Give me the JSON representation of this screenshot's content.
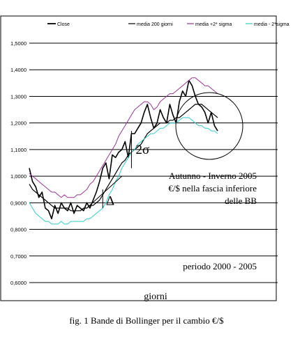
{
  "chart_data": {
    "type": "line",
    "xlabel": "giorni",
    "ylabel": "",
    "ylim": [
      0.6,
      1.5
    ],
    "y_ticks": [
      "0,6000",
      "0,7000",
      "0,8000",
      "0,9000",
      "1,0000",
      "1,1000",
      "1,2000",
      "1,3000",
      "1,4000",
      "1,5000"
    ],
    "grid": "horizontal",
    "legend_position": "top",
    "n_points": 60,
    "series": [
      {
        "name": "Close",
        "color": "#000000",
        "values": [
          1.03,
          0.98,
          0.96,
          0.92,
          0.94,
          0.88,
          0.87,
          0.84,
          0.89,
          0.86,
          0.9,
          0.88,
          0.87,
          0.9,
          0.86,
          0.89,
          0.88,
          0.87,
          0.9,
          0.88,
          0.91,
          0.94,
          0.98,
          1.03,
          1.05,
          0.99,
          1.08,
          1.07,
          1.09,
          1.1,
          1.13,
          1.07,
          1.16,
          1.16,
          1.18,
          1.2,
          1.24,
          1.27,
          1.22,
          1.18,
          1.2,
          1.25,
          1.22,
          1.2,
          1.27,
          1.23,
          1.2,
          1.28,
          1.32,
          1.3,
          1.36,
          1.34,
          1.3,
          1.27,
          1.26,
          1.24,
          1.2,
          1.24,
          1.19,
          1.17
        ]
      },
      {
        "name": "media 200 giorni",
        "color": "#000000",
        "values": [
          0.97,
          0.95,
          0.94,
          0.93,
          0.92,
          0.91,
          0.9,
          0.89,
          0.88,
          0.88,
          0.88,
          0.88,
          0.88,
          0.87,
          0.87,
          0.87,
          0.87,
          0.88,
          0.88,
          0.89,
          0.89,
          0.9,
          0.91,
          0.93,
          0.95,
          0.97,
          0.99,
          1.01,
          1.03,
          1.05,
          1.06,
          1.08,
          1.09,
          1.1,
          1.11,
          1.12,
          1.14,
          1.16,
          1.17,
          1.18,
          1.19,
          1.2,
          1.2,
          1.2,
          1.21,
          1.21,
          1.22,
          1.22,
          1.23,
          1.24,
          1.25,
          1.26,
          1.27,
          1.27,
          1.27,
          1.26,
          1.25,
          1.24,
          1.23,
          1.22
        ]
      },
      {
        "name": "media +2* sigma",
        "color": "#993399",
        "values": [
          1.01,
          1.0,
          0.99,
          0.98,
          0.97,
          0.96,
          0.95,
          0.94,
          0.94,
          0.93,
          0.92,
          0.93,
          0.92,
          0.92,
          0.92,
          0.93,
          0.93,
          0.94,
          0.95,
          0.97,
          0.98,
          1.0,
          1.02,
          1.04,
          1.06,
          1.08,
          1.1,
          1.12,
          1.15,
          1.17,
          1.19,
          1.21,
          1.23,
          1.25,
          1.26,
          1.27,
          1.28,
          1.28,
          1.27,
          1.25,
          1.26,
          1.28,
          1.29,
          1.3,
          1.31,
          1.31,
          1.32,
          1.33,
          1.34,
          1.35,
          1.36,
          1.37,
          1.37,
          1.36,
          1.35,
          1.34,
          1.34,
          1.33,
          1.32,
          1.31
        ]
      },
      {
        "name": "media - 2*sigma",
        "color": "#33cccc",
        "values": [
          0.9,
          0.88,
          0.86,
          0.85,
          0.84,
          0.83,
          0.83,
          0.82,
          0.82,
          0.82,
          0.83,
          0.82,
          0.82,
          0.83,
          0.83,
          0.83,
          0.83,
          0.83,
          0.84,
          0.84,
          0.85,
          0.86,
          0.87,
          0.88,
          0.9,
          0.93,
          0.95,
          0.98,
          1.0,
          1.03,
          1.05,
          1.07,
          1.09,
          1.1,
          1.12,
          1.13,
          1.14,
          1.15,
          1.16,
          1.16,
          1.17,
          1.18,
          1.18,
          1.19,
          1.2,
          1.2,
          1.2,
          1.21,
          1.22,
          1.22,
          1.22,
          1.21,
          1.2,
          1.19,
          1.19,
          1.18,
          1.18,
          1.17,
          1.17,
          1.16
        ]
      }
    ],
    "annotations": [
      {
        "kind": "text",
        "text": "2σ",
        "x": 32,
        "y": 1.1
      },
      {
        "kind": "text",
        "text": "Δ",
        "x": 24,
        "y": 0.91
      },
      {
        "kind": "text-block",
        "lines": [
          "Autunno - Inverno 2005",
          "€/$ nella fascia inferiore",
          "delle BB"
        ]
      },
      {
        "kind": "text",
        "text": "periodo 2000 - 2005"
      }
    ]
  },
  "caption": "fig. 1 Bande di Bollinger per il   cambio €/$"
}
